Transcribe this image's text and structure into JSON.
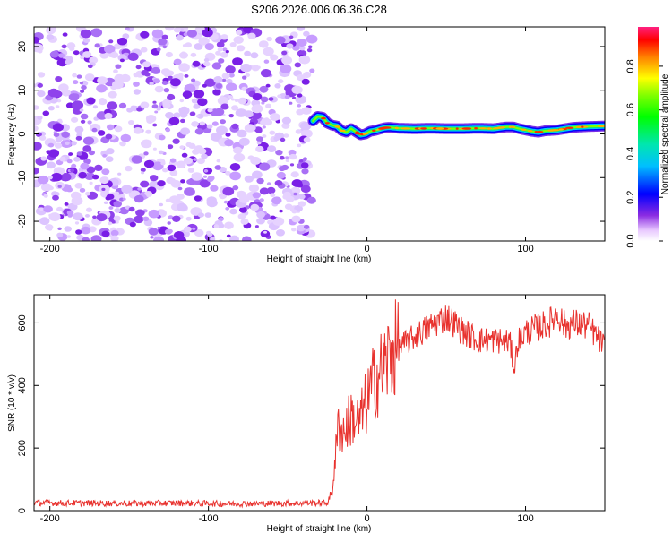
{
  "title": "S206.2026.006.06.36.C28",
  "chart_data": [
    {
      "type": "heatmap",
      "title": "S206.2026.006.06.36.C28",
      "xlabel": "Height of straight line (km)",
      "ylabel": "Frequency (Hz)",
      "xlim": [
        -210,
        150
      ],
      "ylim": [
        -24.5,
        24.5
      ],
      "xticks": [
        -200,
        -100,
        0,
        100
      ],
      "yticks": [
        -20,
        -10,
        0,
        10,
        20
      ],
      "noise_region_end_km": -34,
      "peak_track": {
        "x": [
          -34,
          -31,
          -28,
          -25,
          -22,
          -19,
          -16,
          -13,
          -10,
          -7,
          -4,
          -1,
          2,
          5,
          8,
          11,
          14,
          20,
          30,
          40,
          50,
          60,
          70,
          80,
          84,
          88,
          92,
          96,
          100,
          104,
          108,
          112,
          116,
          120,
          130,
          140,
          150
        ],
        "y": [
          3,
          4,
          3.8,
          2.5,
          2,
          1.8,
          0.8,
          0.4,
          1.2,
          0.5,
          -0.2,
          0,
          0.6,
          0.8,
          1.1,
          1.4,
          1.5,
          1.3,
          1.2,
          1.3,
          1.2,
          1.2,
          1.3,
          1.2,
          1.4,
          1.6,
          1.6,
          1.2,
          0.9,
          0.6,
          0.4,
          0.7,
          0.8,
          0.9,
          1.5,
          1.7,
          1.8
        ]
      },
      "colorbar": {
        "label": "Normalized spectral amplitude",
        "ticks": [
          "0.0",
          "0.2",
          "0.4",
          "0.6",
          "0.8"
        ],
        "range": [
          0,
          0.98
        ]
      }
    },
    {
      "type": "line",
      "xlabel": "Height of straight line (km)",
      "ylabel": "SNR (10 * v/v)",
      "xlim": [
        -210,
        150
      ],
      "ylim": [
        0,
        690
      ],
      "xticks": [
        -200,
        -100,
        0,
        100
      ],
      "yticks": [
        0,
        200,
        400,
        600
      ],
      "color": "#e8322e",
      "series": [
        {
          "name": "SNR",
          "x": [
            -210,
            -180,
            -150,
            -120,
            -90,
            -60,
            -40,
            -25,
            -22,
            -20,
            -18,
            -15,
            -10,
            -5,
            0,
            5,
            10,
            15,
            20,
            30,
            40,
            50,
            55,
            60,
            70,
            80,
            90,
            93,
            95,
            100,
            110,
            115,
            120,
            125,
            130,
            140,
            150
          ],
          "y": [
            25,
            24,
            23,
            24,
            22,
            23,
            24,
            25,
            60,
            170,
            270,
            250,
            300,
            280,
            350,
            420,
            450,
            500,
            520,
            555,
            590,
            620,
            600,
            575,
            545,
            545,
            540,
            450,
            540,
            570,
            590,
            600,
            630,
            590,
            600,
            590,
            520
          ]
        }
      ]
    }
  ]
}
